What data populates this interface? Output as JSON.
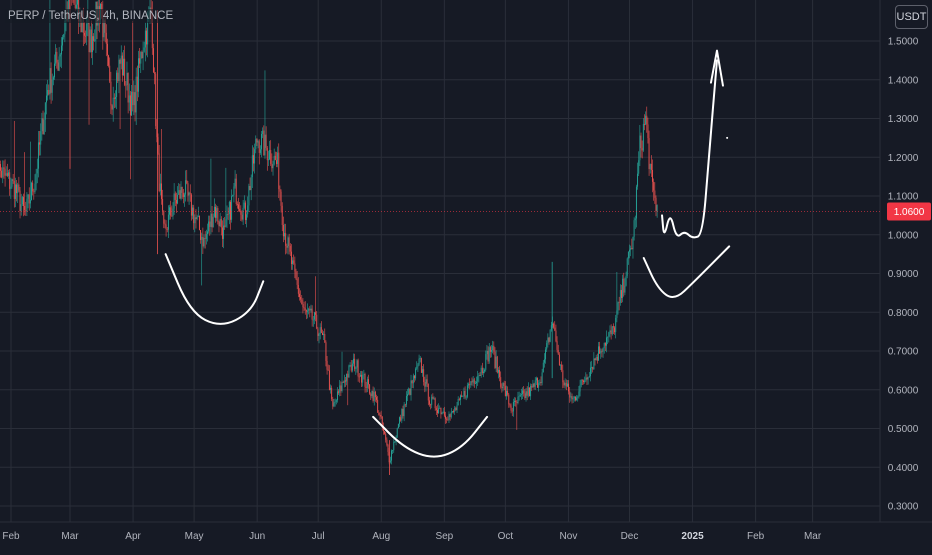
{
  "header": {
    "symbol": "PERP / TetherUS, 4h, BINANCE"
  },
  "currency_button": "USDT",
  "colors": {
    "background": "#161a25",
    "grid": "#2a2e39",
    "up": "#26a69a",
    "down": "#ef5350",
    "price_line": "#f23645",
    "drawing": "#ffffff"
  },
  "chart_data": {
    "type": "candlestick",
    "title": "PERP / TetherUS, 4h, BINANCE",
    "xlabel": "",
    "ylabel": "",
    "ylim": [
      0.28,
      1.55
    ],
    "y_ticks": [
      "1.5000",
      "1.4000",
      "1.3000",
      "1.2000",
      "1.1000",
      "1.0000",
      "0.9000",
      "0.8000",
      "0.7000",
      "0.6000",
      "0.5000",
      "0.4000",
      "0.3000"
    ],
    "x_ticks": [
      {
        "label": "Feb",
        "date": "2024-02-01"
      },
      {
        "label": "Mar",
        "date": "2024-03-01"
      },
      {
        "label": "Apr",
        "date": "2024-04-01"
      },
      {
        "label": "May",
        "date": "2024-05-01"
      },
      {
        "label": "Jun",
        "date": "2024-06-01"
      },
      {
        "label": "Jul",
        "date": "2024-07-01"
      },
      {
        "label": "Aug",
        "date": "2024-08-01"
      },
      {
        "label": "Sep",
        "date": "2024-09-01"
      },
      {
        "label": "Oct",
        "date": "2024-10-01"
      },
      {
        "label": "Nov",
        "date": "2024-11-01"
      },
      {
        "label": "Dec",
        "date": "2024-12-01"
      },
      {
        "label": "2025",
        "date": "2025-01-01"
      },
      {
        "label": "Feb",
        "date": "2025-02-01"
      },
      {
        "label": "Mar",
        "date": "2025-03-01"
      }
    ],
    "last_price": "1.0600",
    "last_price_value": 1.06,
    "price_path": [
      [
        "2024-01-24",
        1.18
      ],
      [
        "2024-02-03",
        1.12
      ],
      [
        "2024-02-08",
        1.05
      ],
      [
        "2024-02-13",
        1.15
      ],
      [
        "2024-02-19",
        1.38
      ],
      [
        "2024-02-24",
        1.45
      ],
      [
        "2024-03-01",
        1.62
      ],
      [
        "2024-03-06",
        1.55
      ],
      [
        "2024-03-11",
        1.5
      ],
      [
        "2024-03-16",
        1.6
      ],
      [
        "2024-03-21",
        1.35
      ],
      [
        "2024-03-26",
        1.45
      ],
      [
        "2024-04-01",
        1.32
      ],
      [
        "2024-04-06",
        1.5
      ],
      [
        "2024-04-10",
        1.58
      ],
      [
        "2024-04-13",
        1.2
      ],
      [
        "2024-04-16",
        1.0
      ],
      [
        "2024-04-21",
        1.08
      ],
      [
        "2024-04-26",
        1.12
      ],
      [
        "2024-05-01",
        1.05
      ],
      [
        "2024-05-06",
        0.98
      ],
      [
        "2024-05-11",
        1.07
      ],
      [
        "2024-05-16",
        1.0
      ],
      [
        "2024-05-21",
        1.12
      ],
      [
        "2024-05-26",
        1.05
      ],
      [
        "2024-06-01",
        1.25
      ],
      [
        "2024-06-06",
        1.22
      ],
      [
        "2024-06-11",
        1.18
      ],
      [
        "2024-06-14",
        1.02
      ],
      [
        "2024-06-19",
        0.9
      ],
      [
        "2024-06-24",
        0.8
      ],
      [
        "2024-06-29",
        0.78
      ],
      [
        "2024-07-04",
        0.72
      ],
      [
        "2024-07-08",
        0.55
      ],
      [
        "2024-07-14",
        0.63
      ],
      [
        "2024-07-19",
        0.67
      ],
      [
        "2024-07-24",
        0.62
      ],
      [
        "2024-07-29",
        0.58
      ],
      [
        "2024-08-03",
        0.47
      ],
      [
        "2024-08-05",
        0.42
      ],
      [
        "2024-08-10",
        0.52
      ],
      [
        "2024-08-15",
        0.6
      ],
      [
        "2024-08-20",
        0.67
      ],
      [
        "2024-08-25",
        0.57
      ],
      [
        "2024-08-30",
        0.55
      ],
      [
        "2024-09-04",
        0.53
      ],
      [
        "2024-09-09",
        0.57
      ],
      [
        "2024-09-14",
        0.62
      ],
      [
        "2024-09-19",
        0.65
      ],
      [
        "2024-09-24",
        0.71
      ],
      [
        "2024-09-29",
        0.62
      ],
      [
        "2024-10-04",
        0.55
      ],
      [
        "2024-10-09",
        0.58
      ],
      [
        "2024-10-14",
        0.6
      ],
      [
        "2024-10-19",
        0.64
      ],
      [
        "2024-10-24",
        0.78
      ],
      [
        "2024-10-29",
        0.63
      ],
      [
        "2024-11-03",
        0.57
      ],
      [
        "2024-11-08",
        0.62
      ],
      [
        "2024-11-13",
        0.67
      ],
      [
        "2024-11-18",
        0.72
      ],
      [
        "2024-11-23",
        0.75
      ],
      [
        "2024-11-28",
        0.87
      ],
      [
        "2024-12-03",
        1.0
      ],
      [
        "2024-12-06",
        1.22
      ],
      [
        "2024-12-09",
        1.3
      ],
      [
        "2024-12-12",
        1.12
      ],
      [
        "2024-12-15",
        1.06
      ]
    ],
    "annotations": [
      {
        "type": "freehand-arc",
        "name": "cup-apr-may",
        "points": [
          [
            "2024-04-17",
            0.95
          ],
          [
            "2024-04-29",
            0.8
          ],
          [
            "2024-05-14",
            0.76
          ],
          [
            "2024-05-29",
            0.8
          ],
          [
            "2024-06-04",
            0.88
          ]
        ]
      },
      {
        "type": "freehand-arc",
        "name": "cup-aug-sep",
        "points": [
          [
            "2024-07-28",
            0.53
          ],
          [
            "2024-08-12",
            0.45
          ],
          [
            "2024-08-27",
            0.42
          ],
          [
            "2024-09-10",
            0.45
          ],
          [
            "2024-09-22",
            0.53
          ]
        ]
      },
      {
        "type": "freehand-arc",
        "name": "cup-dec-jan",
        "points": [
          [
            "2024-12-08",
            0.94
          ],
          [
            "2024-12-15",
            0.86
          ],
          [
            "2024-12-23",
            0.83
          ],
          [
            "2025-01-02",
            0.88
          ],
          [
            "2025-01-19",
            0.97
          ]
        ]
      },
      {
        "type": "freehand-arrow",
        "name": "projection-arrow",
        "points": [
          [
            "2024-12-17",
            1.05
          ],
          [
            "2024-12-18",
            0.99
          ],
          [
            "2024-12-21",
            1.06
          ],
          [
            "2024-12-24",
            0.99
          ],
          [
            "2024-12-28",
            1.01
          ],
          [
            "2025-01-01",
            0.99
          ],
          [
            "2025-01-06",
            1.0
          ],
          [
            "2025-01-09",
            1.2
          ],
          [
            "2025-01-13",
            1.45
          ]
        ],
        "head": [
          "2025-01-13",
          1.47
        ]
      },
      {
        "type": "dot",
        "name": "stray-dot",
        "point": [
          "2025-01-18",
          1.25
        ]
      }
    ]
  }
}
